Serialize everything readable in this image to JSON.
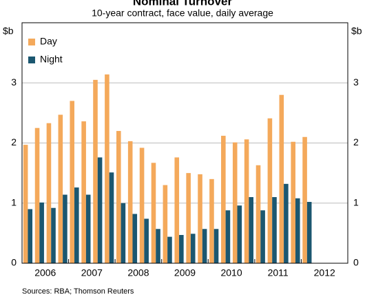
{
  "chart_data": {
    "type": "bar",
    "title": "Nominal Turnover",
    "subtitle": "10-year contract, face value, daily average",
    "y_unit_left": "$b",
    "y_unit_right": "$b",
    "years": [
      "2006",
      "2007",
      "2008",
      "2009",
      "2010",
      "2011",
      "2012"
    ],
    "series": [
      {
        "name": "Day",
        "color": "#f4a95b",
        "values": [
          1.97,
          2.25,
          2.33,
          2.47,
          2.7,
          2.36,
          3.05,
          3.14,
          2.2,
          2.03,
          1.92,
          1.67,
          1.3,
          1.76,
          1.5,
          1.48,
          1.4,
          2.12,
          2.01,
          2.06,
          1.63,
          2.41,
          2.8,
          2.02,
          2.1
        ]
      },
      {
        "name": "Night",
        "color": "#1b5770",
        "values": [
          0.9,
          1.01,
          0.92,
          1.14,
          1.26,
          1.14,
          1.76,
          1.51,
          1.0,
          0.82,
          0.74,
          0.57,
          0.44,
          0.47,
          0.49,
          0.57,
          0.57,
          0.88,
          0.96,
          1.1,
          0.88,
          1.1,
          1.32,
          1.08,
          1.02
        ]
      }
    ],
    "ylim": [
      0,
      4
    ],
    "yticks": [
      0,
      1,
      2,
      3
    ],
    "grid": true,
    "source": "Sources: RBA; Thomson Reuters"
  }
}
